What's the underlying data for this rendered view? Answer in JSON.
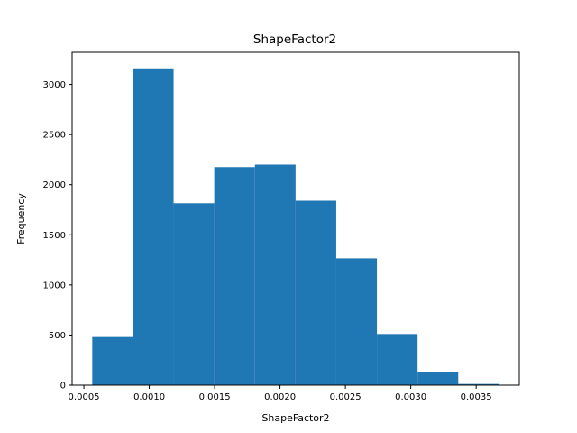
{
  "chart_data": {
    "type": "bar",
    "title": "ShapeFactor2",
    "xlabel": "ShapeFactor2",
    "ylabel": "Frequency",
    "bin_edges": [
      0.000564,
      0.000875,
      0.001186,
      0.001497,
      0.001808,
      0.002119,
      0.00243,
      0.002741,
      0.003052,
      0.003363,
      0.003674
    ],
    "values": [
      480,
      3160,
      1815,
      2175,
      2200,
      1840,
      1265,
      510,
      135,
      12
    ],
    "xlim": [
      0.00041,
      0.00383
    ],
    "ylim": [
      0,
      3320
    ],
    "xticks": [
      0.0005,
      0.001,
      0.0015,
      0.002,
      0.0025,
      0.003,
      0.0035
    ],
    "xtick_labels": [
      "0.0005",
      "0.0010",
      "0.0015",
      "0.0020",
      "0.0025",
      "0.0030",
      "0.0035"
    ],
    "yticks": [
      0,
      500,
      1000,
      1500,
      2000,
      2500,
      3000
    ],
    "ytick_labels": [
      "0",
      "500",
      "1000",
      "1500",
      "2000",
      "2500",
      "3000"
    ],
    "bar_color": "#1f77b4",
    "grid": false,
    "legend": "none"
  }
}
